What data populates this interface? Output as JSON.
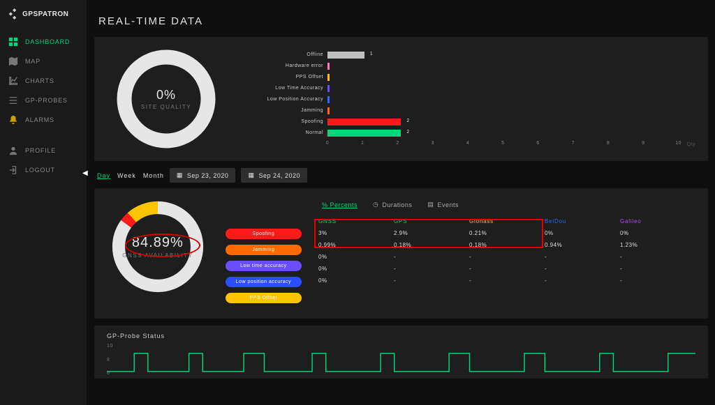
{
  "brand": "GPSPATRON",
  "nav": {
    "dashboard": "DASHBOARD",
    "map": "MAP",
    "charts": "CHARTS",
    "probes": "GP-PROBES",
    "alarms": "ALARMS",
    "profile": "PROFILE",
    "logout": "LOGOUT"
  },
  "page_title": "REAL-TIME DATA",
  "colors": {
    "bg": "#0f0f0f",
    "panel": "#1e1e1e",
    "accent": "#00d67a",
    "text": "#e6e6e6"
  },
  "site_quality": {
    "value": "0%",
    "label": "SITE QUALITY",
    "ring_color": "#e6e6e6",
    "ring_thickness": 18
  },
  "status_bars": {
    "max": 10,
    "unit_label": "Qty",
    "ticks": [
      "0",
      "1",
      "2",
      "3",
      "4",
      "5",
      "6",
      "7",
      "8",
      "9",
      "10"
    ],
    "rows": [
      {
        "label": "Offline",
        "value": 1,
        "value_label": "1",
        "color": "#bfbfbf"
      },
      {
        "label": "Hardware error",
        "value": 0,
        "value_label": "",
        "color": "#ff7ab8"
      },
      {
        "label": "PPS Offset",
        "value": 0,
        "value_label": "",
        "color": "#ffc400"
      },
      {
        "label": "Low Time Accuracy",
        "value": 0,
        "value_label": "",
        "color": "#6b4dff"
      },
      {
        "label": "Low Position Accuracy",
        "value": 0,
        "value_label": "",
        "color": "#3366ff"
      },
      {
        "label": "Jamming",
        "value": 0,
        "value_label": "",
        "color": "#ff6a00"
      },
      {
        "label": "Spoofing",
        "value": 2,
        "value_label": "2",
        "color": "#ff1a1a"
      },
      {
        "label": "Normal",
        "value": 2,
        "value_label": "2",
        "color": "#00d67a"
      }
    ]
  },
  "range": {
    "options": [
      "Day",
      "Week",
      "Month"
    ],
    "selected": "Day",
    "date_from": "Sep 23, 2020",
    "date_to": "Sep 24, 2020"
  },
  "availability": {
    "value": "84.89%",
    "label": "GNSS AVAILABILITY",
    "slices": [
      {
        "color": "#e6e6e6",
        "pct": 84.89
      },
      {
        "color": "#ff1a1a",
        "pct": 3.5
      },
      {
        "color": "#ffc400",
        "pct": 11.61
      }
    ]
  },
  "legend_pills": [
    {
      "label": "Spoofing",
      "color": "#ff1a1a"
    },
    {
      "label": "Jamming",
      "color": "#ff6a00"
    },
    {
      "label": "Low time accuracy",
      "color": "#6b4dff"
    },
    {
      "label": "Low position accuracy",
      "color": "#2a4dff"
    },
    {
      "label": "PPS Offset",
      "color": "#ffc400"
    }
  ],
  "tabs": {
    "percents": "% Percents",
    "durations": "Durations",
    "events": "Events",
    "selected": "percents"
  },
  "constellations": [
    {
      "name": "GNSS",
      "color": "#00d67a"
    },
    {
      "name": "GPS",
      "color": "#00d67a"
    },
    {
      "name": "Glonass",
      "color": "#ffc400"
    },
    {
      "name": "BeiDou",
      "color": "#2a6bff"
    },
    {
      "name": "Galileo",
      "color": "#b84dff"
    }
  ],
  "stats_rows": [
    [
      "3%",
      "2.9%",
      "0.21%",
      "0%",
      "0%"
    ],
    [
      "0.99%",
      "0.18%",
      "0.18%",
      "0.94%",
      "1.23%"
    ],
    [
      "0%",
      "-",
      "-",
      "-",
      "-"
    ],
    [
      "0%",
      "-",
      "-",
      "-",
      "-"
    ],
    [
      "0%",
      "-",
      "-",
      "-",
      "-"
    ]
  ],
  "probe_panel": {
    "title": "GP-Probe Status",
    "yticks": [
      "10",
      "8",
      "6"
    ]
  }
}
